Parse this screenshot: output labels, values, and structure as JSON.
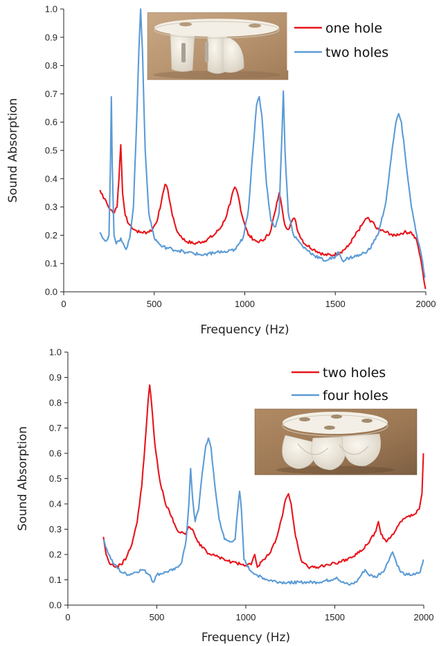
{
  "colors": {
    "red": "#e8141b",
    "blue": "#5b9bd5",
    "axis": "#222222"
  },
  "chart_data": [
    {
      "type": "line",
      "xlabel": "Frequency (Hz)",
      "ylabel": "Sound Absorption",
      "xlim": [
        0,
        2000
      ],
      "ylim": [
        0,
        1.0
      ],
      "xticks": [
        "0",
        "500",
        "1000",
        "1500",
        "2000"
      ],
      "yticks": [
        "0.0",
        "0.1",
        "0.2",
        "0.3",
        "0.4",
        "0.5",
        "0.6",
        "0.7",
        "0.8",
        "0.9",
        "1.0"
      ],
      "grid": false,
      "legend_position": "top-right",
      "inset_photo": "3D-printed resonator with two holes",
      "series": [
        {
          "name": "one hole",
          "color": "red",
          "points": [
            [
              200,
              0.36
            ],
            [
              220,
              0.33
            ],
            [
              240,
              0.31
            ],
            [
              260,
              0.29
            ],
            [
              280,
              0.28
            ],
            [
              295,
              0.3
            ],
            [
              305,
              0.4
            ],
            [
              315,
              0.52
            ],
            [
              325,
              0.35
            ],
            [
              340,
              0.27
            ],
            [
              360,
              0.24
            ],
            [
              390,
              0.22
            ],
            [
              420,
              0.21
            ],
            [
              460,
              0.21
            ],
            [
              490,
              0.22
            ],
            [
              520,
              0.26
            ],
            [
              545,
              0.34
            ],
            [
              560,
              0.38
            ],
            [
              575,
              0.36
            ],
            [
              600,
              0.27
            ],
            [
              630,
              0.21
            ],
            [
              670,
              0.18
            ],
            [
              720,
              0.17
            ],
            [
              780,
              0.18
            ],
            [
              830,
              0.2
            ],
            [
              870,
              0.23
            ],
            [
              900,
              0.27
            ],
            [
              925,
              0.33
            ],
            [
              945,
              0.37
            ],
            [
              960,
              0.35
            ],
            [
              985,
              0.27
            ],
            [
              1020,
              0.2
            ],
            [
              1060,
              0.18
            ],
            [
              1100,
              0.18
            ],
            [
              1140,
              0.21
            ],
            [
              1170,
              0.29
            ],
            [
              1190,
              0.35
            ],
            [
              1205,
              0.3
            ],
            [
              1220,
              0.24
            ],
            [
              1240,
              0.22
            ],
            [
              1260,
              0.25
            ],
            [
              1275,
              0.26
            ],
            [
              1295,
              0.21
            ],
            [
              1330,
              0.17
            ],
            [
              1380,
              0.15
            ],
            [
              1440,
              0.13
            ],
            [
              1490,
              0.13
            ],
            [
              1530,
              0.14
            ],
            [
              1570,
              0.16
            ],
            [
              1610,
              0.2
            ],
            [
              1650,
              0.24
            ],
            [
              1675,
              0.26
            ],
            [
              1700,
              0.25
            ],
            [
              1740,
              0.22
            ],
            [
              1780,
              0.21
            ],
            [
              1830,
              0.2
            ],
            [
              1880,
              0.21
            ],
            [
              1920,
              0.21
            ],
            [
              1950,
              0.18
            ],
            [
              1970,
              0.12
            ],
            [
              1985,
              0.06
            ],
            [
              1998,
              0.01
            ]
          ]
        },
        {
          "name": "two holes",
          "color": "blue",
          "points": [
            [
              200,
              0.21
            ],
            [
              215,
              0.19
            ],
            [
              235,
              0.18
            ],
            [
              250,
              0.2
            ],
            [
              258,
              0.45
            ],
            [
              263,
              0.69
            ],
            [
              268,
              0.45
            ],
            [
              278,
              0.2
            ],
            [
              290,
              0.17
            ],
            [
              305,
              0.18
            ],
            [
              315,
              0.19
            ],
            [
              330,
              0.17
            ],
            [
              345,
              0.15
            ],
            [
              365,
              0.19
            ],
            [
              385,
              0.3
            ],
            [
              400,
              0.55
            ],
            [
              415,
              0.85
            ],
            [
              425,
              1.0
            ],
            [
              435,
              0.85
            ],
            [
              450,
              0.5
            ],
            [
              470,
              0.28
            ],
            [
              500,
              0.19
            ],
            [
              540,
              0.16
            ],
            [
              600,
              0.15
            ],
            [
              680,
              0.14
            ],
            [
              760,
              0.13
            ],
            [
              840,
              0.14
            ],
            [
              900,
              0.14
            ],
            [
              950,
              0.15
            ],
            [
              990,
              0.19
            ],
            [
              1020,
              0.29
            ],
            [
              1045,
              0.5
            ],
            [
              1065,
              0.66
            ],
            [
              1080,
              0.69
            ],
            [
              1095,
              0.62
            ],
            [
              1120,
              0.38
            ],
            [
              1145,
              0.25
            ],
            [
              1170,
              0.23
            ],
            [
              1190,
              0.28
            ],
            [
              1205,
              0.55
            ],
            [
              1213,
              0.71
            ],
            [
              1222,
              0.5
            ],
            [
              1240,
              0.28
            ],
            [
              1270,
              0.2
            ],
            [
              1320,
              0.16
            ],
            [
              1380,
              0.13
            ],
            [
              1440,
              0.11
            ],
            [
              1490,
              0.12
            ],
            [
              1520,
              0.14
            ],
            [
              1540,
              0.11
            ],
            [
              1580,
              0.12
            ],
            [
              1640,
              0.13
            ],
            [
              1690,
              0.15
            ],
            [
              1740,
              0.21
            ],
            [
              1780,
              0.32
            ],
            [
              1810,
              0.48
            ],
            [
              1835,
              0.6
            ],
            [
              1850,
              0.63
            ],
            [
              1865,
              0.6
            ],
            [
              1890,
              0.46
            ],
            [
              1920,
              0.3
            ],
            [
              1950,
              0.2
            ],
            [
              1975,
              0.13
            ],
            [
              1995,
              0.05
            ]
          ]
        }
      ]
    },
    {
      "type": "line",
      "xlabel": "Frequency (Hz)",
      "ylabel": "Sound Absorption",
      "xlim": [
        0,
        2000
      ],
      "ylim": [
        0,
        1.0
      ],
      "xticks": [
        "0",
        "500",
        "1000",
        "1500",
        "2000"
      ],
      "yticks": [
        "0.0",
        "0.1",
        "0.2",
        "0.3",
        "0.4",
        "0.5",
        "0.6",
        "0.7",
        "0.8",
        "0.9",
        "1.0"
      ],
      "grid": false,
      "legend_position": "top-right",
      "inset_photo": "3D-printed resonator with four holes",
      "series": [
        {
          "name": "two holes",
          "color": "red",
          "points": [
            [
              200,
              0.27
            ],
            [
              215,
              0.2
            ],
            [
              240,
              0.16
            ],
            [
              270,
              0.15
            ],
            [
              300,
              0.16
            ],
            [
              330,
              0.19
            ],
            [
              360,
              0.24
            ],
            [
              390,
              0.33
            ],
            [
              415,
              0.47
            ],
            [
              435,
              0.65
            ],
            [
              450,
              0.8
            ],
            [
              460,
              0.87
            ],
            [
              470,
              0.8
            ],
            [
              490,
              0.63
            ],
            [
              515,
              0.5
            ],
            [
              545,
              0.41
            ],
            [
              575,
              0.36
            ],
            [
              600,
              0.32
            ],
            [
              620,
              0.29
            ],
            [
              640,
              0.29
            ],
            [
              660,
              0.28
            ],
            [
              680,
              0.31
            ],
            [
              700,
              0.3
            ],
            [
              730,
              0.25
            ],
            [
              780,
              0.21
            ],
            [
              850,
              0.19
            ],
            [
              920,
              0.17
            ],
            [
              980,
              0.16
            ],
            [
              1030,
              0.16
            ],
            [
              1050,
              0.2
            ],
            [
              1065,
              0.15
            ],
            [
              1100,
              0.18
            ],
            [
              1140,
              0.21
            ],
            [
              1170,
              0.26
            ],
            [
              1200,
              0.34
            ],
            [
              1225,
              0.42
            ],
            [
              1240,
              0.44
            ],
            [
              1255,
              0.4
            ],
            [
              1280,
              0.27
            ],
            [
              1310,
              0.18
            ],
            [
              1350,
              0.15
            ],
            [
              1400,
              0.15
            ],
            [
              1460,
              0.16
            ],
            [
              1530,
              0.17
            ],
            [
              1600,
              0.19
            ],
            [
              1660,
              0.22
            ],
            [
              1700,
              0.26
            ],
            [
              1730,
              0.29
            ],
            [
              1745,
              0.33
            ],
            [
              1760,
              0.28
            ],
            [
              1790,
              0.25
            ],
            [
              1830,
              0.28
            ],
            [
              1870,
              0.33
            ],
            [
              1910,
              0.35
            ],
            [
              1950,
              0.36
            ],
            [
              1975,
              0.38
            ],
            [
              1990,
              0.44
            ],
            [
              1998,
              0.6
            ]
          ]
        },
        {
          "name": "four holes",
          "color": "blue",
          "points": [
            [
              200,
              0.26
            ],
            [
              230,
              0.2
            ],
            [
              260,
              0.16
            ],
            [
              300,
              0.13
            ],
            [
              340,
              0.12
            ],
            [
              380,
              0.13
            ],
            [
              420,
              0.14
            ],
            [
              460,
              0.12
            ],
            [
              480,
              0.09
            ],
            [
              500,
              0.12
            ],
            [
              550,
              0.13
            ],
            [
              600,
              0.14
            ],
            [
              640,
              0.17
            ],
            [
              665,
              0.26
            ],
            [
              680,
              0.4
            ],
            [
              690,
              0.54
            ],
            [
              700,
              0.43
            ],
            [
              715,
              0.33
            ],
            [
              735,
              0.38
            ],
            [
              755,
              0.52
            ],
            [
              775,
              0.63
            ],
            [
              790,
              0.66
            ],
            [
              805,
              0.62
            ],
            [
              825,
              0.48
            ],
            [
              850,
              0.34
            ],
            [
              880,
              0.26
            ],
            [
              910,
              0.25
            ],
            [
              940,
              0.26
            ],
            [
              955,
              0.38
            ],
            [
              965,
              0.45
            ],
            [
              975,
              0.38
            ],
            [
              990,
              0.18
            ],
            [
              1020,
              0.14
            ],
            [
              1060,
              0.12
            ],
            [
              1120,
              0.1
            ],
            [
              1200,
              0.09
            ],
            [
              1300,
              0.09
            ],
            [
              1400,
              0.09
            ],
            [
              1480,
              0.1
            ],
            [
              1510,
              0.11
            ],
            [
              1540,
              0.09
            ],
            [
              1580,
              0.08
            ],
            [
              1620,
              0.09
            ],
            [
              1650,
              0.12
            ],
            [
              1670,
              0.14
            ],
            [
              1690,
              0.12
            ],
            [
              1730,
              0.11
            ],
            [
              1780,
              0.14
            ],
            [
              1810,
              0.19
            ],
            [
              1825,
              0.21
            ],
            [
              1845,
              0.17
            ],
            [
              1870,
              0.13
            ],
            [
              1910,
              0.12
            ],
            [
              1950,
              0.12
            ],
            [
              1980,
              0.13
            ],
            [
              1998,
              0.18
            ]
          ]
        }
      ]
    }
  ]
}
